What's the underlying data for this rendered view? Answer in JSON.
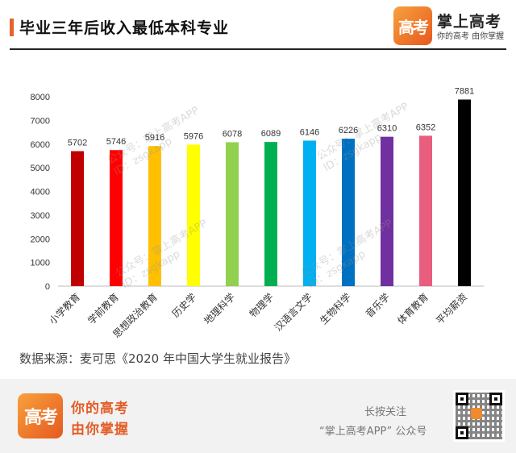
{
  "header": {
    "title": "毕业三年后收入最低本科专业",
    "brand_logo_text": "高考",
    "brand_name": "掌上高考",
    "brand_slogan": "你的高考 由你掌握"
  },
  "watermark": {
    "line1": "公众号：掌上高考APP",
    "line2": "ID：zsgkapp"
  },
  "chart_data": {
    "type": "bar",
    "title": "",
    "xlabel": "",
    "ylabel": "",
    "ylim": [
      0,
      8000
    ],
    "yticks": [
      0,
      1000,
      2000,
      3000,
      4000,
      5000,
      6000,
      7000,
      8000
    ],
    "grid": false,
    "legend": "none",
    "categories": [
      "小学教育",
      "学前教育",
      "思想政治教育",
      "历史学",
      "地理科学",
      "物理学",
      "汉语言文学",
      "生物科学",
      "音乐学",
      "体育教育",
      "平均薪资"
    ],
    "values": [
      5702,
      5746,
      5916,
      5976,
      6078,
      6089,
      6146,
      6226,
      6310,
      6352,
      7881
    ],
    "colors": [
      "#c00000",
      "#ff0000",
      "#ffc000",
      "#ffff00",
      "#92d050",
      "#00b050",
      "#00b0f0",
      "#0070c0",
      "#7030a0",
      "#e95d7e",
      "#000000"
    ]
  },
  "source": "数据来源：麦可思《2020 年中国大学生就业报告》",
  "footer": {
    "logo_text": "高考",
    "slogan_line1": "你的高考",
    "slogan_line2": "由你掌握",
    "press_hint": "长按关注",
    "follow_hint": "“掌上高考APP” 公众号"
  }
}
